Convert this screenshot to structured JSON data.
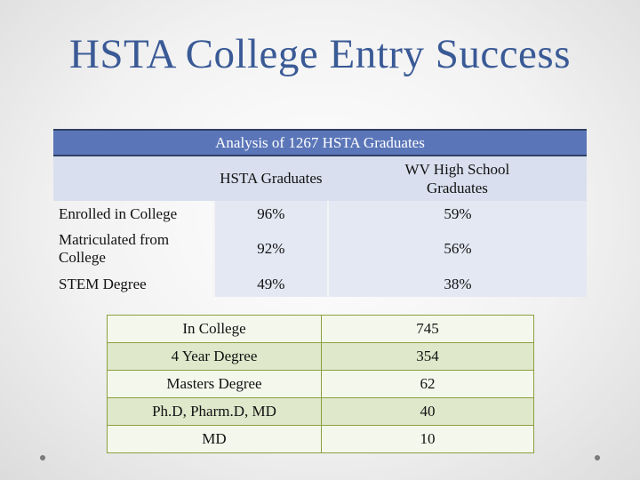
{
  "slide": {
    "title": "HSTA College Entry Success"
  },
  "table1": {
    "caption": "Analysis of 1267 HSTA Graduates",
    "col_headers": [
      "",
      "HSTA Graduates",
      "WV High School Graduates"
    ],
    "rows": [
      {
        "label": "Enrolled in College",
        "hsta": "96%",
        "wv": "59%"
      },
      {
        "label": "Matriculated from College",
        "hsta": "92%",
        "wv": "56%"
      },
      {
        "label": "STEM Degree",
        "hsta": "49%",
        "wv": "38%"
      }
    ]
  },
  "table2": {
    "rows": [
      {
        "label": "In College",
        "value": "745"
      },
      {
        "label": "4 Year Degree",
        "value": "354"
      },
      {
        "label": "Masters Degree",
        "value": "62"
      },
      {
        "label": "Ph.D, Pharm.D, MD",
        "value": "40"
      },
      {
        "label": "MD",
        "value": "10"
      }
    ]
  },
  "colors": {
    "title": "#3a5a96",
    "header_bg": "#5b76b8",
    "cell_bg": "#e4e8f3",
    "green_border": "#8aa040"
  }
}
